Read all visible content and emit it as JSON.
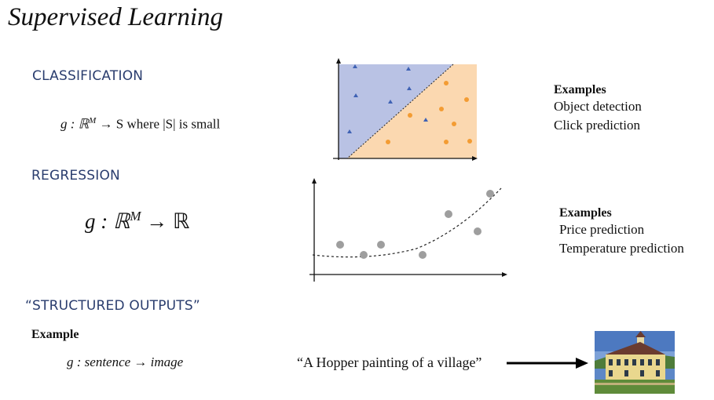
{
  "title": "Supervised Learning",
  "classification": {
    "heading": "CLASSIFICATION",
    "formula_pre": "g : ℝ",
    "formula_sup": "M",
    "formula_post": " → S where |S| is small",
    "examples_heading": "Examples",
    "examples": [
      "Object detection",
      "Click prediction"
    ],
    "colors": {
      "region_a": "#b9c2e4",
      "region_b": "#fbd8b0",
      "triangle": "#3f62b4",
      "dot": "#f39c33"
    }
  },
  "regression": {
    "heading": "REGRESSION",
    "formula_pre": "g : ℝ",
    "formula_sup": "M",
    "formula_post": " → ℝ",
    "examples_heading": "Examples",
    "examples": [
      "Price prediction",
      "Temperature prediction"
    ],
    "colors": {
      "point": "#9e9e9e"
    }
  },
  "structured": {
    "heading": "“STRUCTURED OUTPUTS”",
    "example_heading": "Example",
    "formula": "g : sentence → image",
    "quote": "“A Hopper painting of a village”"
  }
}
